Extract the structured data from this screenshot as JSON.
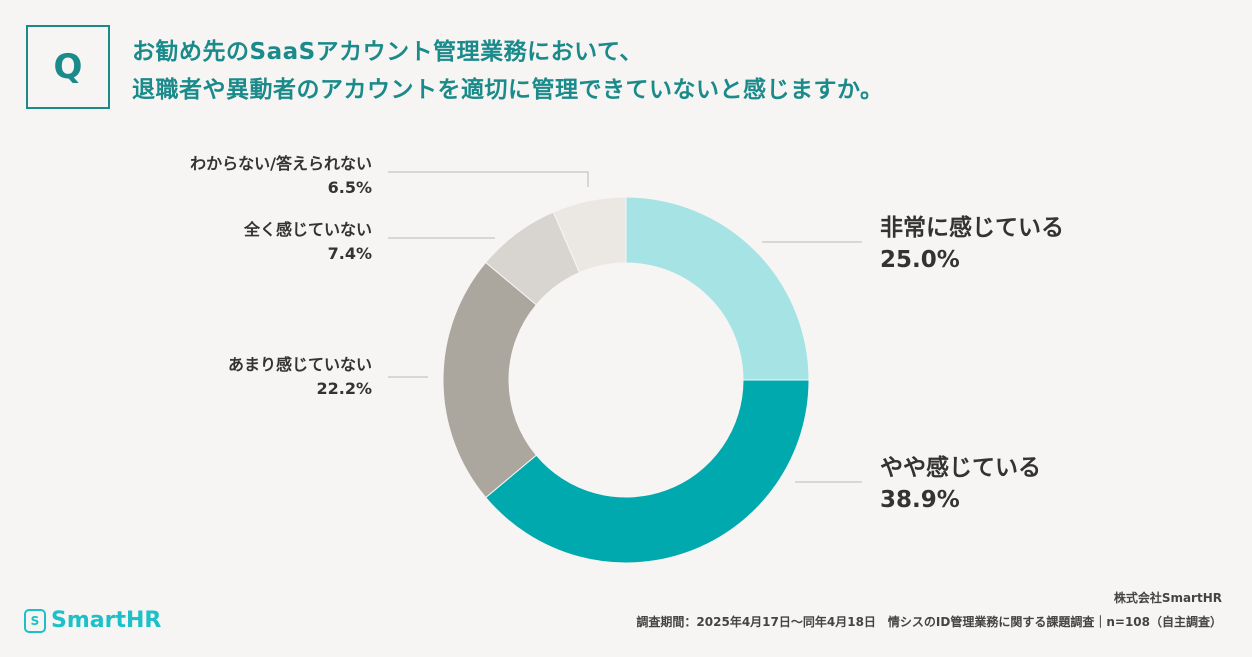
{
  "header": {
    "q_label": "Q",
    "title_line1": "お勧め先のSaaSアカウント管理業務において、",
    "title_line2": "退職者や異動者のアカウントを適切に管理できていないと感じますか。"
  },
  "chart_data": {
    "type": "pie",
    "donut": true,
    "start": "top, clockwise",
    "categories": [
      "非常に感じている",
      "やや感じている",
      "あまり感じていない",
      "全く感じていない",
      "わからない/答えられない"
    ],
    "values": [
      25.0,
      38.9,
      22.2,
      7.4,
      6.5
    ],
    "value_labels": [
      "25.0%",
      "38.9%",
      "22.2%",
      "7.4%",
      "6.5%"
    ],
    "colors": [
      "#a6e3e4",
      "#00a9ad",
      "#aba69e",
      "#d8d4cf",
      "#ebe8e4"
    ]
  },
  "footer": {
    "logo": "SmartHR",
    "logo_mark": "S",
    "company": "株式会社SmartHR",
    "source": "調査期間：2025年4月17日～同年4月18日　情シスのID管理業務に関する課題調査｜n=108（自主調査）"
  }
}
